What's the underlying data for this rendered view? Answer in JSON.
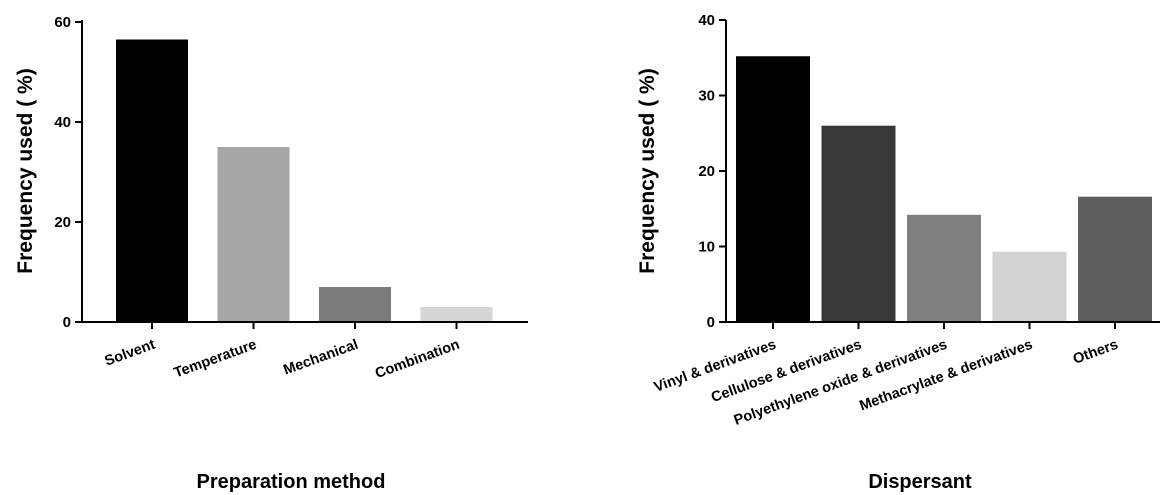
{
  "chart_data": [
    {
      "type": "bar",
      "categories": [
        "Solvent",
        "Temperature",
        "Mechanical",
        "Combination"
      ],
      "values": [
        56.5,
        35,
        7,
        3
      ],
      "colors": [
        "#000000",
        "#a6a6a6",
        "#7a7a7a",
        "#d6d6d6"
      ],
      "xlabel": "Preparation method",
      "ylabel": "Frequency used ( %)",
      "ylim": [
        0,
        60
      ],
      "yticks": [
        "0",
        "20",
        "40",
        "60"
      ],
      "grid": false
    },
    {
      "type": "bar",
      "categories": [
        "Vinyl & derivatives",
        "Cellulose & derivatives",
        "Polyethylene oxide & derivatives",
        "Methacrylate & derivatives",
        "Others"
      ],
      "values": [
        35.2,
        26,
        14.2,
        9.3,
        16.6
      ],
      "colors": [
        "#000000",
        "#383838",
        "#7e7e7e",
        "#d2d2d2",
        "#5f5f5f"
      ],
      "xlabel": "Dispersant",
      "ylabel": "Frequency used ( %)",
      "ylim": [
        0,
        40
      ],
      "yticks": [
        "0",
        "10",
        "20",
        "30",
        "40"
      ],
      "grid": false
    }
  ]
}
